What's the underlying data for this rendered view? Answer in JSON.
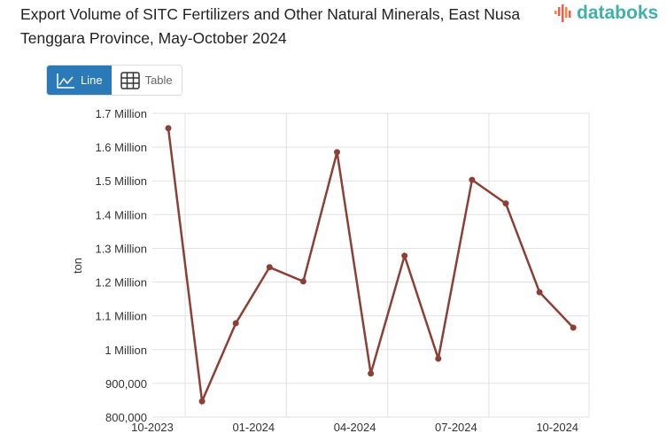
{
  "title": "Export Volume of SITC Fertilizers and Other Natural Minerals, East Nusa Tenggara Province, May-October 2024",
  "logo_text": "databoks",
  "toggle": {
    "line_label": "Line",
    "table_label": "Table",
    "active": "Line"
  },
  "colors": {
    "line": "#8b3f35",
    "accent": "#2a7ab8",
    "logo": "#3fb0ac"
  },
  "chart_data": {
    "type": "line",
    "title": "Export Volume of SITC Fertilizers and Other Natural Minerals, East Nusa Tenggara Province, May-October 2024",
    "ylabel": "ton",
    "xlabel": "",
    "ylim": [
      800000,
      1700000
    ],
    "yticks": [
      800000,
      900000,
      1000000,
      1100000,
      1200000,
      1300000,
      1400000,
      1500000,
      1600000,
      1700000
    ],
    "ytick_labels": [
      "800,000",
      "900,000",
      "1 Million",
      "1.1 Million",
      "1.2 Million",
      "1.3 Million",
      "1.4 Million",
      "1.5 Million",
      "1.6 Million",
      "1.7 Million"
    ],
    "x": [
      "10-2023",
      "11-2023",
      "12-2023",
      "01-2024",
      "02-2024",
      "03-2024",
      "04-2024",
      "05-2024",
      "06-2024",
      "07-2024",
      "08-2024",
      "09-2024",
      "10-2024"
    ],
    "xtick_labels": [
      "10-2023",
      "01-2024",
      "04-2024",
      "07-2024",
      "10-2024"
    ],
    "series": [
      {
        "values": [
          1656000,
          847000,
          1078000,
          1244000,
          1202000,
          1585000,
          929000,
          1278000,
          973000,
          1503000,
          1433000,
          1170000,
          1065000
        ]
      }
    ],
    "grid": true,
    "legend": "none"
  }
}
